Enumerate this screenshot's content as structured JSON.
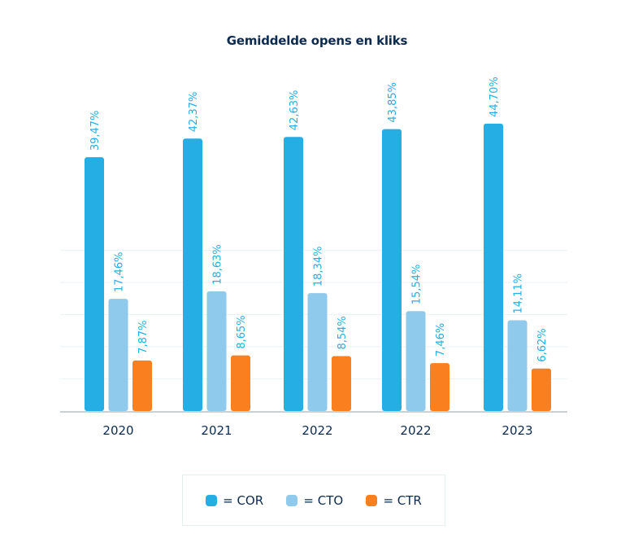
{
  "chart_data": {
    "type": "bar",
    "title": "Gemiddelde opens en kliks",
    "xlabel": "",
    "ylabel": "",
    "ylim": [
      0,
      50
    ],
    "grid": true,
    "gridlines": [
      5,
      10,
      15,
      20,
      25
    ],
    "categories": [
      "2020",
      "2021",
      "2022",
      "2022",
      "2023"
    ],
    "series": [
      {
        "name": "COR",
        "color": "#24aee3",
        "values": [
          39.47,
          42.37,
          42.63,
          43.85,
          44.7
        ],
        "labels": [
          "39,47%",
          "42,37%",
          "42,63%",
          "43,85%",
          "44,70%"
        ]
      },
      {
        "name": "CTO",
        "color": "#8fcaec",
        "values": [
          17.46,
          18.63,
          18.34,
          15.54,
          14.11
        ],
        "labels": [
          "17,46%",
          "18,63%",
          "18,34%",
          "15,54%",
          "14,11%"
        ]
      },
      {
        "name": "CTR",
        "color": "#fa7f1f",
        "values": [
          7.87,
          8.65,
          8.54,
          7.46,
          6.62
        ],
        "labels": [
          "7,87%",
          "8,65%",
          "8,54%",
          "7,46%",
          "6,62%"
        ]
      }
    ],
    "legend": {
      "placement": "bottom",
      "items": [
        {
          "label": "= COR",
          "color": "#24aee3"
        },
        {
          "label": "= CTO",
          "color": "#8fcaec"
        },
        {
          "label": "= CTR",
          "color": "#fa7f1f"
        }
      ]
    },
    "label_color": "#24aee3",
    "axis_color": "#a9b3bd",
    "text_color": "#0d2b4e"
  }
}
